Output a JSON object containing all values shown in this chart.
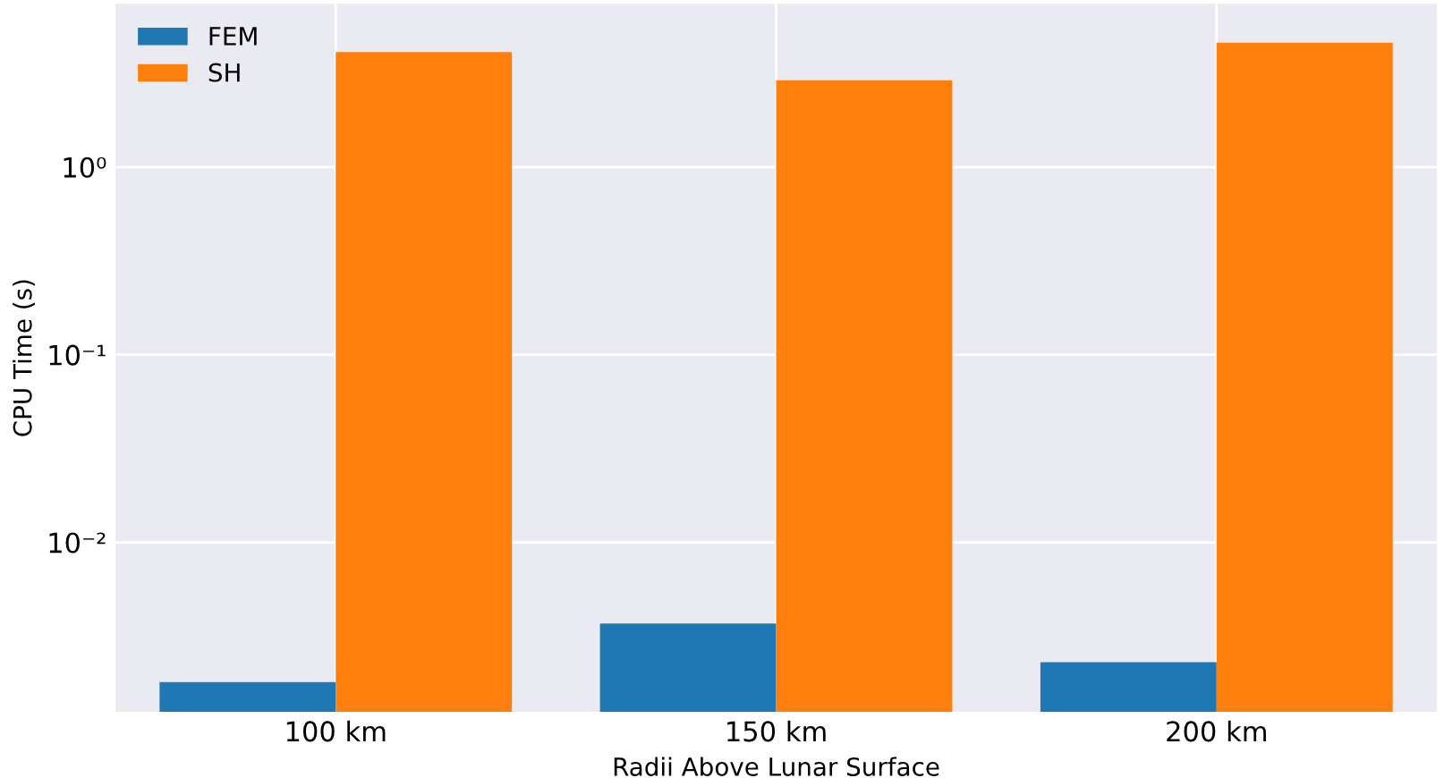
{
  "chart_data": {
    "type": "bar",
    "xlabel": "Radii Above Lunar Surface",
    "ylabel": "CPU Time (s)",
    "categories": [
      "100 km",
      "150 km",
      "200 km"
    ],
    "series": [
      {
        "name": "FEM",
        "color": "#1f77b4",
        "values": [
          0.0018,
          0.0037,
          0.0023
        ]
      },
      {
        "name": "SH",
        "color": "#ff7f0e",
        "values": [
          4.1,
          2.9,
          4.6
        ]
      }
    ],
    "log": "y",
    "ylim": [
      0.00125,
      7.4
    ],
    "yticks": [
      {
        "value": 0.01,
        "label": "10⁻²"
      },
      {
        "value": 0.1,
        "label": "10⁻¹"
      },
      {
        "value": 1,
        "label": "10⁰"
      }
    ],
    "grid": true,
    "legend": "top left"
  }
}
